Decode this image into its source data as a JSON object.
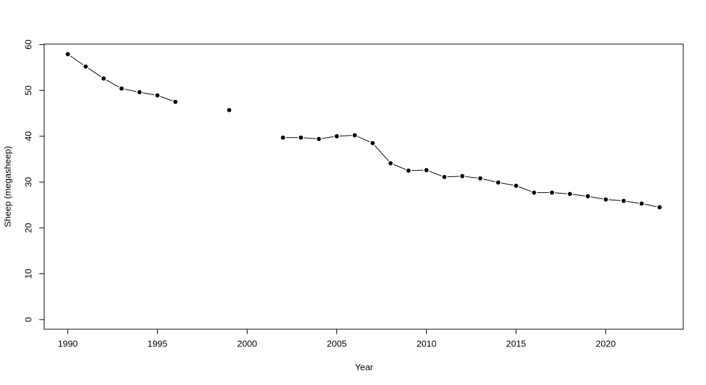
{
  "chart_data": {
    "type": "line",
    "xlabel": "Year",
    "ylabel": "Sheep (megasheep)",
    "x": [
      1990,
      1991,
      1992,
      1993,
      1994,
      1995,
      1996,
      1997,
      1998,
      1999,
      2000,
      2001,
      2002,
      2003,
      2004,
      2005,
      2006,
      2007,
      2008,
      2009,
      2010,
      2011,
      2012,
      2013,
      2014,
      2015,
      2016,
      2017,
      2018,
      2019,
      2020,
      2021,
      2022,
      2023
    ],
    "values": [
      57.9,
      55.2,
      52.6,
      50.4,
      49.6,
      48.9,
      47.5,
      null,
      null,
      45.7,
      null,
      null,
      39.7,
      39.7,
      39.4,
      40.0,
      40.2,
      38.5,
      34.1,
      32.5,
      32.6,
      31.1,
      31.3,
      30.8,
      29.9,
      29.2,
      27.7,
      27.7,
      27.4,
      26.9,
      26.2,
      25.9,
      25.3,
      24.5
    ],
    "color": "#000000",
    "xlim": [
      1988.68,
      2024.32
    ],
    "xticks": [
      1990,
      1995,
      2000,
      2005,
      2010,
      2015,
      2020
    ],
    "ylim": [
      -2.1,
      60.1
    ],
    "yticks": [
      0,
      10,
      20,
      30,
      40,
      50,
      60
    ],
    "markers": true,
    "grid": false
  }
}
